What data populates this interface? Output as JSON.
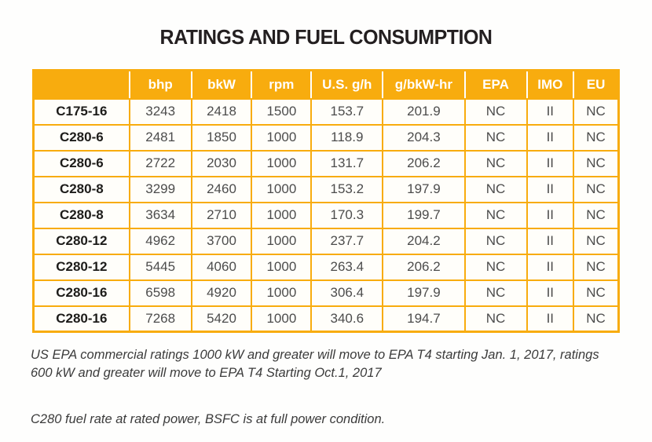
{
  "title": "RATINGS AND FUEL CONSUMPTION",
  "colors": {
    "header_bg": "#F8AC0E",
    "table_border": "#F8AC0E",
    "header_text": "#FFFFFF",
    "value_text": "#4C4C4C",
    "model_text": "#1D1C1A"
  },
  "table": {
    "columns": [
      "",
      "bhp",
      "bkW",
      "rpm",
      "U.S. g/h",
      "g/bkW-hr",
      "EPA",
      "IMO",
      "EU"
    ],
    "rows": [
      {
        "model": "C175-16",
        "values": [
          "3243",
          "2418",
          "1500",
          "153.7",
          "201.9",
          "NC",
          "II",
          "NC"
        ]
      },
      {
        "model": "C280-6",
        "values": [
          "2481",
          "1850",
          "1000",
          "118.9",
          "204.3",
          "NC",
          "II",
          "NC"
        ]
      },
      {
        "model": "C280-6",
        "values": [
          "2722",
          "2030",
          "1000",
          "131.7",
          "206.2",
          "NC",
          "II",
          "NC"
        ]
      },
      {
        "model": "C280-8",
        "values": [
          "3299",
          "2460",
          "1000",
          "153.2",
          "197.9",
          "NC",
          "II",
          "NC"
        ]
      },
      {
        "model": "C280-8",
        "values": [
          "3634",
          "2710",
          "1000",
          "170.3",
          "199.7",
          "NC",
          "II",
          "NC"
        ]
      },
      {
        "model": "C280-12",
        "values": [
          "4962",
          "3700",
          "1000",
          "237.7",
          "204.2",
          "NC",
          "II",
          "NC"
        ]
      },
      {
        "model": "C280-12",
        "values": [
          "5445",
          "4060",
          "1000",
          "263.4",
          "206.2",
          "NC",
          "II",
          "NC"
        ]
      },
      {
        "model": "C280-16",
        "values": [
          "6598",
          "4920",
          "1000",
          "306.4",
          "197.9",
          "NC",
          "II",
          "NC"
        ]
      },
      {
        "model": "C280-16",
        "values": [
          "7268",
          "5420",
          "1000",
          "340.6",
          "194.7",
          "NC",
          "II",
          "NC"
        ]
      }
    ]
  },
  "notes": [
    "US EPA commercial ratings 1000 kW and greater will move to EPA T4 starting Jan. 1, 2017, ratings 600 kW and greater will move to EPA T4 Starting Oct.1, 2017",
    "C280 fuel rate at rated power, BSFC is at full power condition."
  ]
}
